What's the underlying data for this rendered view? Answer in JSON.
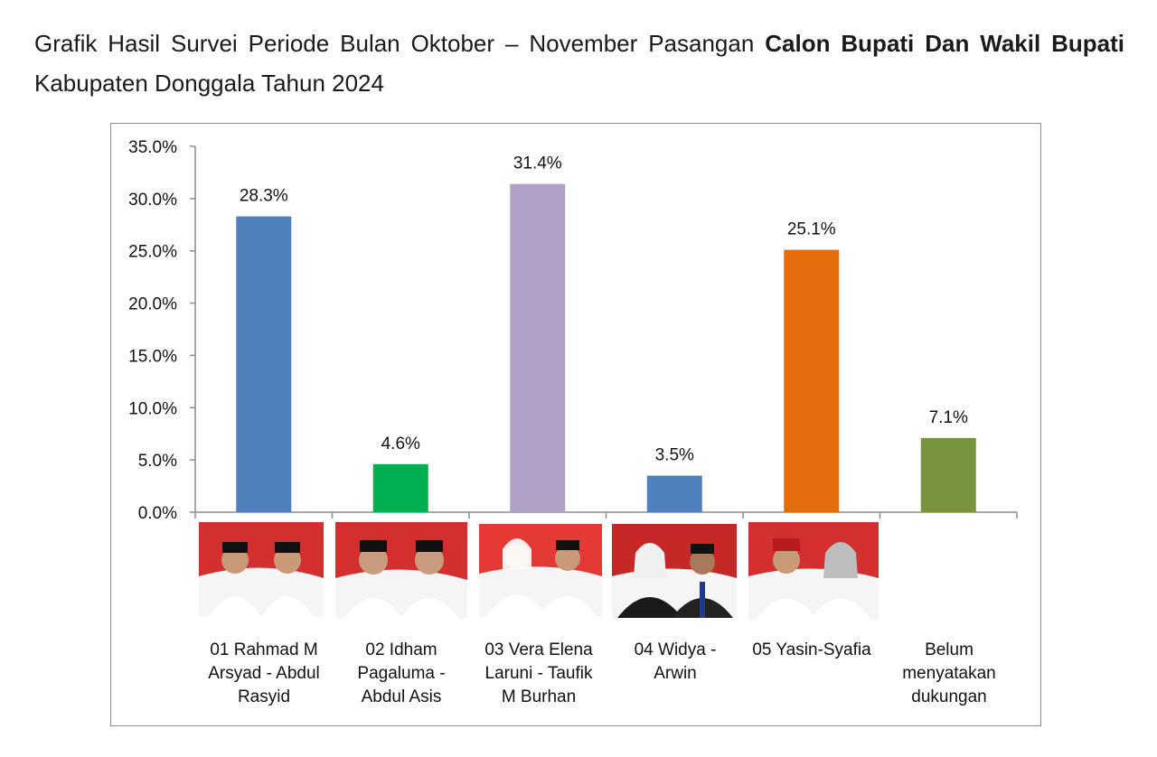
{
  "title": {
    "part1": "Grafik Hasil Survei Periode Bulan Oktober – November Pasangan ",
    "bold1": "Calon Bupati Dan Wakil Bupati",
    "part2": " Kabupaten Donggala Tahun 2024"
  },
  "chart_data": {
    "type": "bar",
    "title": "Grafik Hasil Survei Periode Bulan Oktober – November Pasangan Calon Bupati Dan Wakil Bupati Kabupaten Donggala Tahun 2024",
    "categories": [
      "01 Rahmad M Arsyad - Abdul Rasyid",
      "02 Idham Pagaluma - Abdul Asis",
      "03 Vera Elena Laruni - Taufik M Burhan",
      "04 Widya - Arwin",
      "05 Yasin-Syafia",
      "Belum menyatakan dukungan"
    ],
    "values": [
      28.3,
      4.6,
      31.4,
      3.5,
      25.1,
      7.1
    ],
    "data_labels": [
      "28.3%",
      "4.6%",
      "31.4%",
      "3.5%",
      "25.1%",
      "7.1%"
    ],
    "colors": [
      "#4f81bd",
      "#00b050",
      "#b2a1c7",
      "#4f81bd",
      "#e46c0a",
      "#77933c"
    ],
    "ylim": [
      0,
      35
    ],
    "yticks": [
      0,
      5,
      10,
      15,
      20,
      25,
      30,
      35
    ],
    "ytick_labels": [
      "0.0%",
      "5.0%",
      "10.0%",
      "15.0%",
      "20.0%",
      "25.0%",
      "30.0%",
      "35.0%"
    ],
    "xlabel": "",
    "ylabel": "",
    "grid": false
  },
  "captions": [
    [
      "01 Rahmad M",
      "Arsyad - Abdul",
      "Rasyid"
    ],
    [
      "02 Idham",
      "Pagaluma -",
      "Abdul Asis"
    ],
    [
      "03 Vera Elena",
      "Laruni - Taufik",
      "M Burhan"
    ],
    [
      "04 Widya -",
      "Arwin"
    ],
    [
      "05 Yasin-Syafia"
    ],
    [
      "Belum",
      "menyatakan",
      "dukungan"
    ]
  ]
}
